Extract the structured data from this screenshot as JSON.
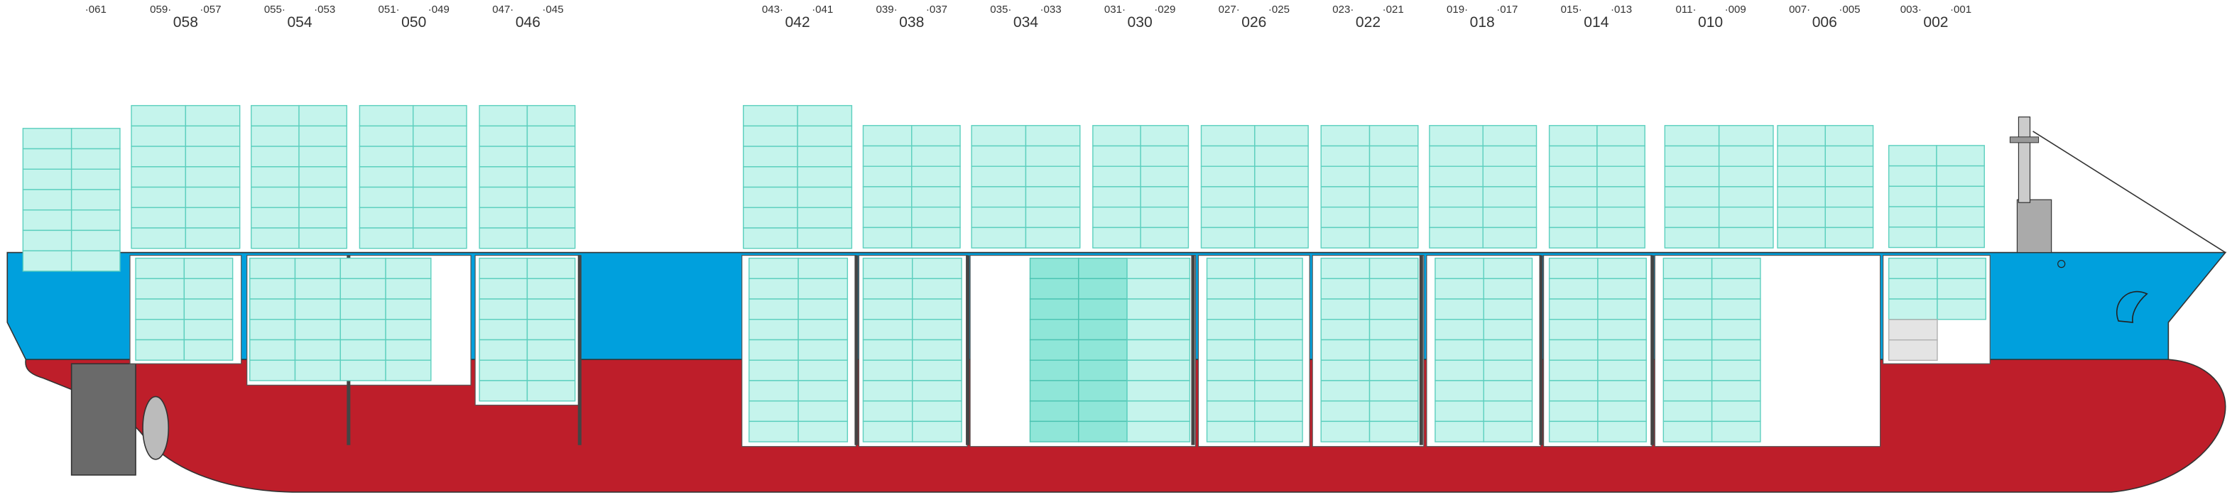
{
  "single_labels": [
    "·061"
  ],
  "bays": [
    {
      "label": "058",
      "left": "059·",
      "right": "·057"
    },
    {
      "label": "054",
      "left": "055·",
      "right": "·053"
    },
    {
      "label": "050",
      "left": "051·",
      "right": "·049"
    },
    {
      "label": "046",
      "left": "047·",
      "right": "·045"
    },
    {
      "label": "042",
      "left": "043·",
      "right": "·041"
    },
    {
      "label": "038",
      "left": "039·",
      "right": "·037"
    },
    {
      "label": "034",
      "left": "035·",
      "right": "·033"
    },
    {
      "label": "030",
      "left": "031·",
      "right": "·029"
    },
    {
      "label": "026",
      "left": "027·",
      "right": "·025"
    },
    {
      "label": "022",
      "left": "023·",
      "right": "·021"
    },
    {
      "label": "018",
      "left": "019·",
      "right": "·017"
    },
    {
      "label": "014",
      "left": "015·",
      "right": "·013"
    },
    {
      "label": "010",
      "left": "011·",
      "right": "·009"
    },
    {
      "label": "006",
      "left": "007·",
      "right": "·005"
    },
    {
      "label": "002",
      "left": "003·",
      "right": "·001"
    }
  ]
}
